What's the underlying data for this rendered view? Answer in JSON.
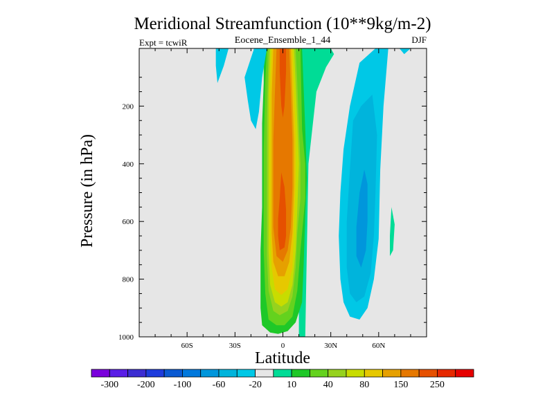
{
  "chart_data": {
    "type": "heatmap",
    "title": "Meridional Streamfunction (10**9kg/m-2)",
    "subtitle_center": "Eocene_Ensemble_1_44",
    "subtitle_left": "Expt = tcwiR",
    "subtitle_right": "DJF",
    "xlabel": "Latitude",
    "ylabel": "Pressure (in hPa)",
    "xlim": [
      -90,
      90
    ],
    "ylim": [
      1000,
      0
    ],
    "x_ticks": [
      {
        "value": -60,
        "label": "60S"
      },
      {
        "value": -30,
        "label": "30S"
      },
      {
        "value": 0,
        "label": "0"
      },
      {
        "value": 30,
        "label": "30N"
      },
      {
        "value": 60,
        "label": "60N"
      }
    ],
    "y_ticks": [
      {
        "value": 200,
        "label": "200"
      },
      {
        "value": 400,
        "label": "400"
      },
      {
        "value": 600,
        "label": "600"
      },
      {
        "value": 800,
        "label": "800"
      },
      {
        "value": 1000,
        "label": "1000"
      }
    ],
    "background_color": "#e6e6e6",
    "colorbar": {
      "colors": [
        "#7a00dc",
        "#5a1ee6",
        "#3c2dd2",
        "#1e3cdc",
        "#0a5ad2",
        "#0078dc",
        "#0096dc",
        "#00b4dc",
        "#00c8e6",
        "#e6e6e6",
        "#00dc96",
        "#1ec828",
        "#64d21e",
        "#96d21e",
        "#c8dc00",
        "#e6c800",
        "#e6a000",
        "#e67800",
        "#e65000",
        "#e62800",
        "#e60000"
      ],
      "labels": [
        "-300",
        "-200",
        "-100",
        "-60",
        "-20",
        "10",
        "40",
        "80",
        "150",
        "250"
      ]
    },
    "contour_levels": [
      -300,
      -250,
      -200,
      -150,
      -100,
      -80,
      -60,
      -40,
      -20,
      -10,
      10,
      20,
      40,
      60,
      80,
      100,
      150,
      200,
      250,
      300
    ],
    "regions": [
      {
        "level": 10,
        "color": "#00dc96",
        "polygon": [
          [
            22,
            0
          ],
          [
            30,
            0
          ],
          [
            32,
            20
          ],
          [
            27,
            65
          ],
          [
            21,
            150
          ],
          [
            16,
            400
          ],
          [
            14,
            1000
          ],
          [
            10,
            1000
          ],
          [
            10,
            0
          ]
        ]
      },
      {
        "level": 20,
        "color": "#1ec828",
        "polygon": [
          [
            -12,
            0
          ],
          [
            12,
            0
          ],
          [
            14,
            280
          ],
          [
            15,
            450
          ],
          [
            14,
            580
          ],
          [
            13,
            750
          ],
          [
            12,
            880
          ],
          [
            8,
            950
          ],
          [
            3,
            980
          ],
          [
            -3,
            990
          ],
          [
            -8,
            985
          ],
          [
            -13,
            960
          ],
          [
            -14,
            900
          ],
          [
            -14,
            800
          ],
          [
            -14,
            700
          ],
          [
            -13,
            550
          ],
          [
            -13,
            400
          ],
          [
            -13,
            260
          ],
          [
            -12,
            120
          ]
        ]
      },
      {
        "level": 40,
        "color": "#64d21e",
        "polygon": [
          [
            -10,
            0
          ],
          [
            11,
            0
          ],
          [
            12,
            280
          ],
          [
            14,
            400
          ],
          [
            14,
            520
          ],
          [
            11,
            700
          ],
          [
            9,
            840
          ],
          [
            6,
            930
          ],
          [
            1,
            960
          ],
          [
            -4,
            960
          ],
          [
            -9,
            940
          ],
          [
            -11,
            850
          ],
          [
            -12,
            700
          ],
          [
            -12,
            500
          ],
          [
            -12,
            350
          ],
          [
            -11,
            120
          ]
        ]
      },
      {
        "level": 60,
        "color": "#96d21e",
        "polygon": [
          [
            -9,
            0
          ],
          [
            8,
            0
          ],
          [
            9,
            120
          ],
          [
            10,
            280
          ],
          [
            11,
            400
          ],
          [
            11,
            520
          ],
          [
            9,
            640
          ],
          [
            8,
            760
          ],
          [
            6,
            860
          ],
          [
            3,
            910
          ],
          [
            -2,
            925
          ],
          [
            -6,
            910
          ],
          [
            -9,
            840
          ],
          [
            -10,
            720
          ],
          [
            -10,
            580
          ],
          [
            -10,
            420
          ],
          [
            -10,
            240
          ]
        ]
      },
      {
        "level": 80,
        "color": "#c8dc00",
        "polygon": [
          [
            -8,
            0
          ],
          [
            7,
            0
          ],
          [
            8,
            120
          ],
          [
            9,
            260
          ],
          [
            10,
            400
          ],
          [
            9,
            560
          ],
          [
            8,
            700
          ],
          [
            6,
            820
          ],
          [
            3,
            880
          ],
          [
            -1,
            895
          ],
          [
            -5,
            880
          ],
          [
            -8,
            820
          ],
          [
            -9,
            700
          ],
          [
            -9,
            520
          ],
          [
            -9,
            340
          ],
          [
            -9,
            160
          ]
        ]
      },
      {
        "level": 100,
        "color": "#e6c800",
        "polygon": [
          [
            -7,
            0
          ],
          [
            6,
            0
          ],
          [
            7,
            140
          ],
          [
            8,
            300
          ],
          [
            8,
            460
          ],
          [
            7,
            620
          ],
          [
            6,
            760
          ],
          [
            3,
            835
          ],
          [
            -1,
            855
          ],
          [
            -5,
            835
          ],
          [
            -7,
            760
          ],
          [
            -8,
            620
          ],
          [
            -8,
            460
          ],
          [
            -8,
            300
          ],
          [
            -8,
            140
          ]
        ]
      },
      {
        "level": 150,
        "color": "#e6a000",
        "polygon": [
          [
            -6,
            0
          ],
          [
            5,
            0
          ],
          [
            6,
            160
          ],
          [
            7,
            320
          ],
          [
            7,
            480
          ],
          [
            6,
            640
          ],
          [
            4,
            740
          ],
          [
            1,
            790
          ],
          [
            -3,
            790
          ],
          [
            -6,
            740
          ],
          [
            -7,
            640
          ],
          [
            -7,
            480
          ],
          [
            -7,
            320
          ],
          [
            -7,
            160
          ]
        ]
      },
      {
        "level": 200,
        "color": "#e67800",
        "polygon": [
          [
            -4,
            0
          ],
          [
            4,
            0
          ],
          [
            5,
            150
          ],
          [
            6,
            320
          ],
          [
            6,
            480
          ],
          [
            5,
            620
          ],
          [
            3,
            700
          ],
          [
            0,
            740
          ],
          [
            -4,
            720
          ],
          [
            -6,
            620
          ],
          [
            -6,
            480
          ],
          [
            -6,
            320
          ],
          [
            -5,
            150
          ]
        ]
      },
      {
        "level": 250,
        "color": "#e65000",
        "polygon": [
          [
            -2,
            0
          ],
          [
            2,
            0
          ],
          [
            2,
            80
          ],
          [
            1,
            200
          ],
          [
            0,
            240
          ],
          [
            -1,
            200
          ],
          [
            -2,
            80
          ]
        ]
      },
      {
        "level": 250,
        "color": "#e65000",
        "polygon": [
          [
            -1,
            430
          ],
          [
            1,
            480
          ],
          [
            2,
            560
          ],
          [
            2,
            650
          ],
          [
            1,
            690
          ],
          [
            -2,
            700
          ],
          [
            -3,
            650
          ],
          [
            -3,
            590
          ],
          [
            -2,
            520
          ]
        ]
      },
      {
        "level": -10,
        "color": "#00c8e6",
        "polygon": [
          [
            32,
            0
          ],
          [
            90,
            0
          ],
          [
            80,
            0
          ],
          [
            76,
            20
          ],
          [
            73,
            0
          ],
          [
            66,
            0
          ],
          [
            63,
            200
          ],
          [
            61,
            420
          ],
          [
            60,
            660
          ],
          [
            57,
            800
          ],
          [
            53,
            900
          ],
          [
            48,
            940
          ],
          [
            42,
            930
          ],
          [
            38,
            880
          ],
          [
            36,
            800
          ],
          [
            35,
            650
          ],
          [
            36,
            500
          ],
          [
            38,
            350
          ],
          [
            42,
            200
          ],
          [
            48,
            50
          ],
          [
            58,
            0
          ]
        ]
      },
      {
        "level": -10,
        "color": "#00c8e6",
        "polygon": [
          [
            -18,
            0
          ],
          [
            -10,
            0
          ],
          [
            -13,
            100
          ],
          [
            -15,
            220
          ],
          [
            -17,
            280
          ],
          [
            -20,
            250
          ],
          [
            -22,
            180
          ],
          [
            -24,
            100
          ]
        ]
      },
      {
        "level": -10,
        "color": "#00c8e6",
        "polygon": [
          [
            -42,
            0
          ],
          [
            -34,
            0
          ],
          [
            -37,
            60
          ],
          [
            -41,
            120
          ],
          [
            -42,
            60
          ]
        ]
      },
      {
        "level": -20,
        "color": "#00b4dc",
        "polygon": [
          [
            44,
            250
          ],
          [
            49,
            200
          ],
          [
            56,
            160
          ],
          [
            59,
            300
          ],
          [
            58,
            500
          ],
          [
            57,
            650
          ],
          [
            55,
            780
          ],
          [
            51,
            860
          ],
          [
            46,
            880
          ],
          [
            42,
            850
          ],
          [
            40,
            760
          ],
          [
            40,
            600
          ],
          [
            42,
            420
          ]
        ]
      },
      {
        "level": -40,
        "color": "#0096dc",
        "polygon": [
          [
            48,
            500
          ],
          [
            51,
            420
          ],
          [
            53,
            470
          ],
          [
            53,
            600
          ],
          [
            52,
            700
          ],
          [
            49,
            760
          ],
          [
            46,
            720
          ],
          [
            46,
            620
          ]
        ]
      },
      {
        "level": 10,
        "color": "#00dc96",
        "polygon": [
          [
            67,
            650
          ],
          [
            68,
            550
          ],
          [
            70,
            610
          ],
          [
            69,
            700
          ],
          [
            67,
            720
          ]
        ]
      }
    ]
  }
}
